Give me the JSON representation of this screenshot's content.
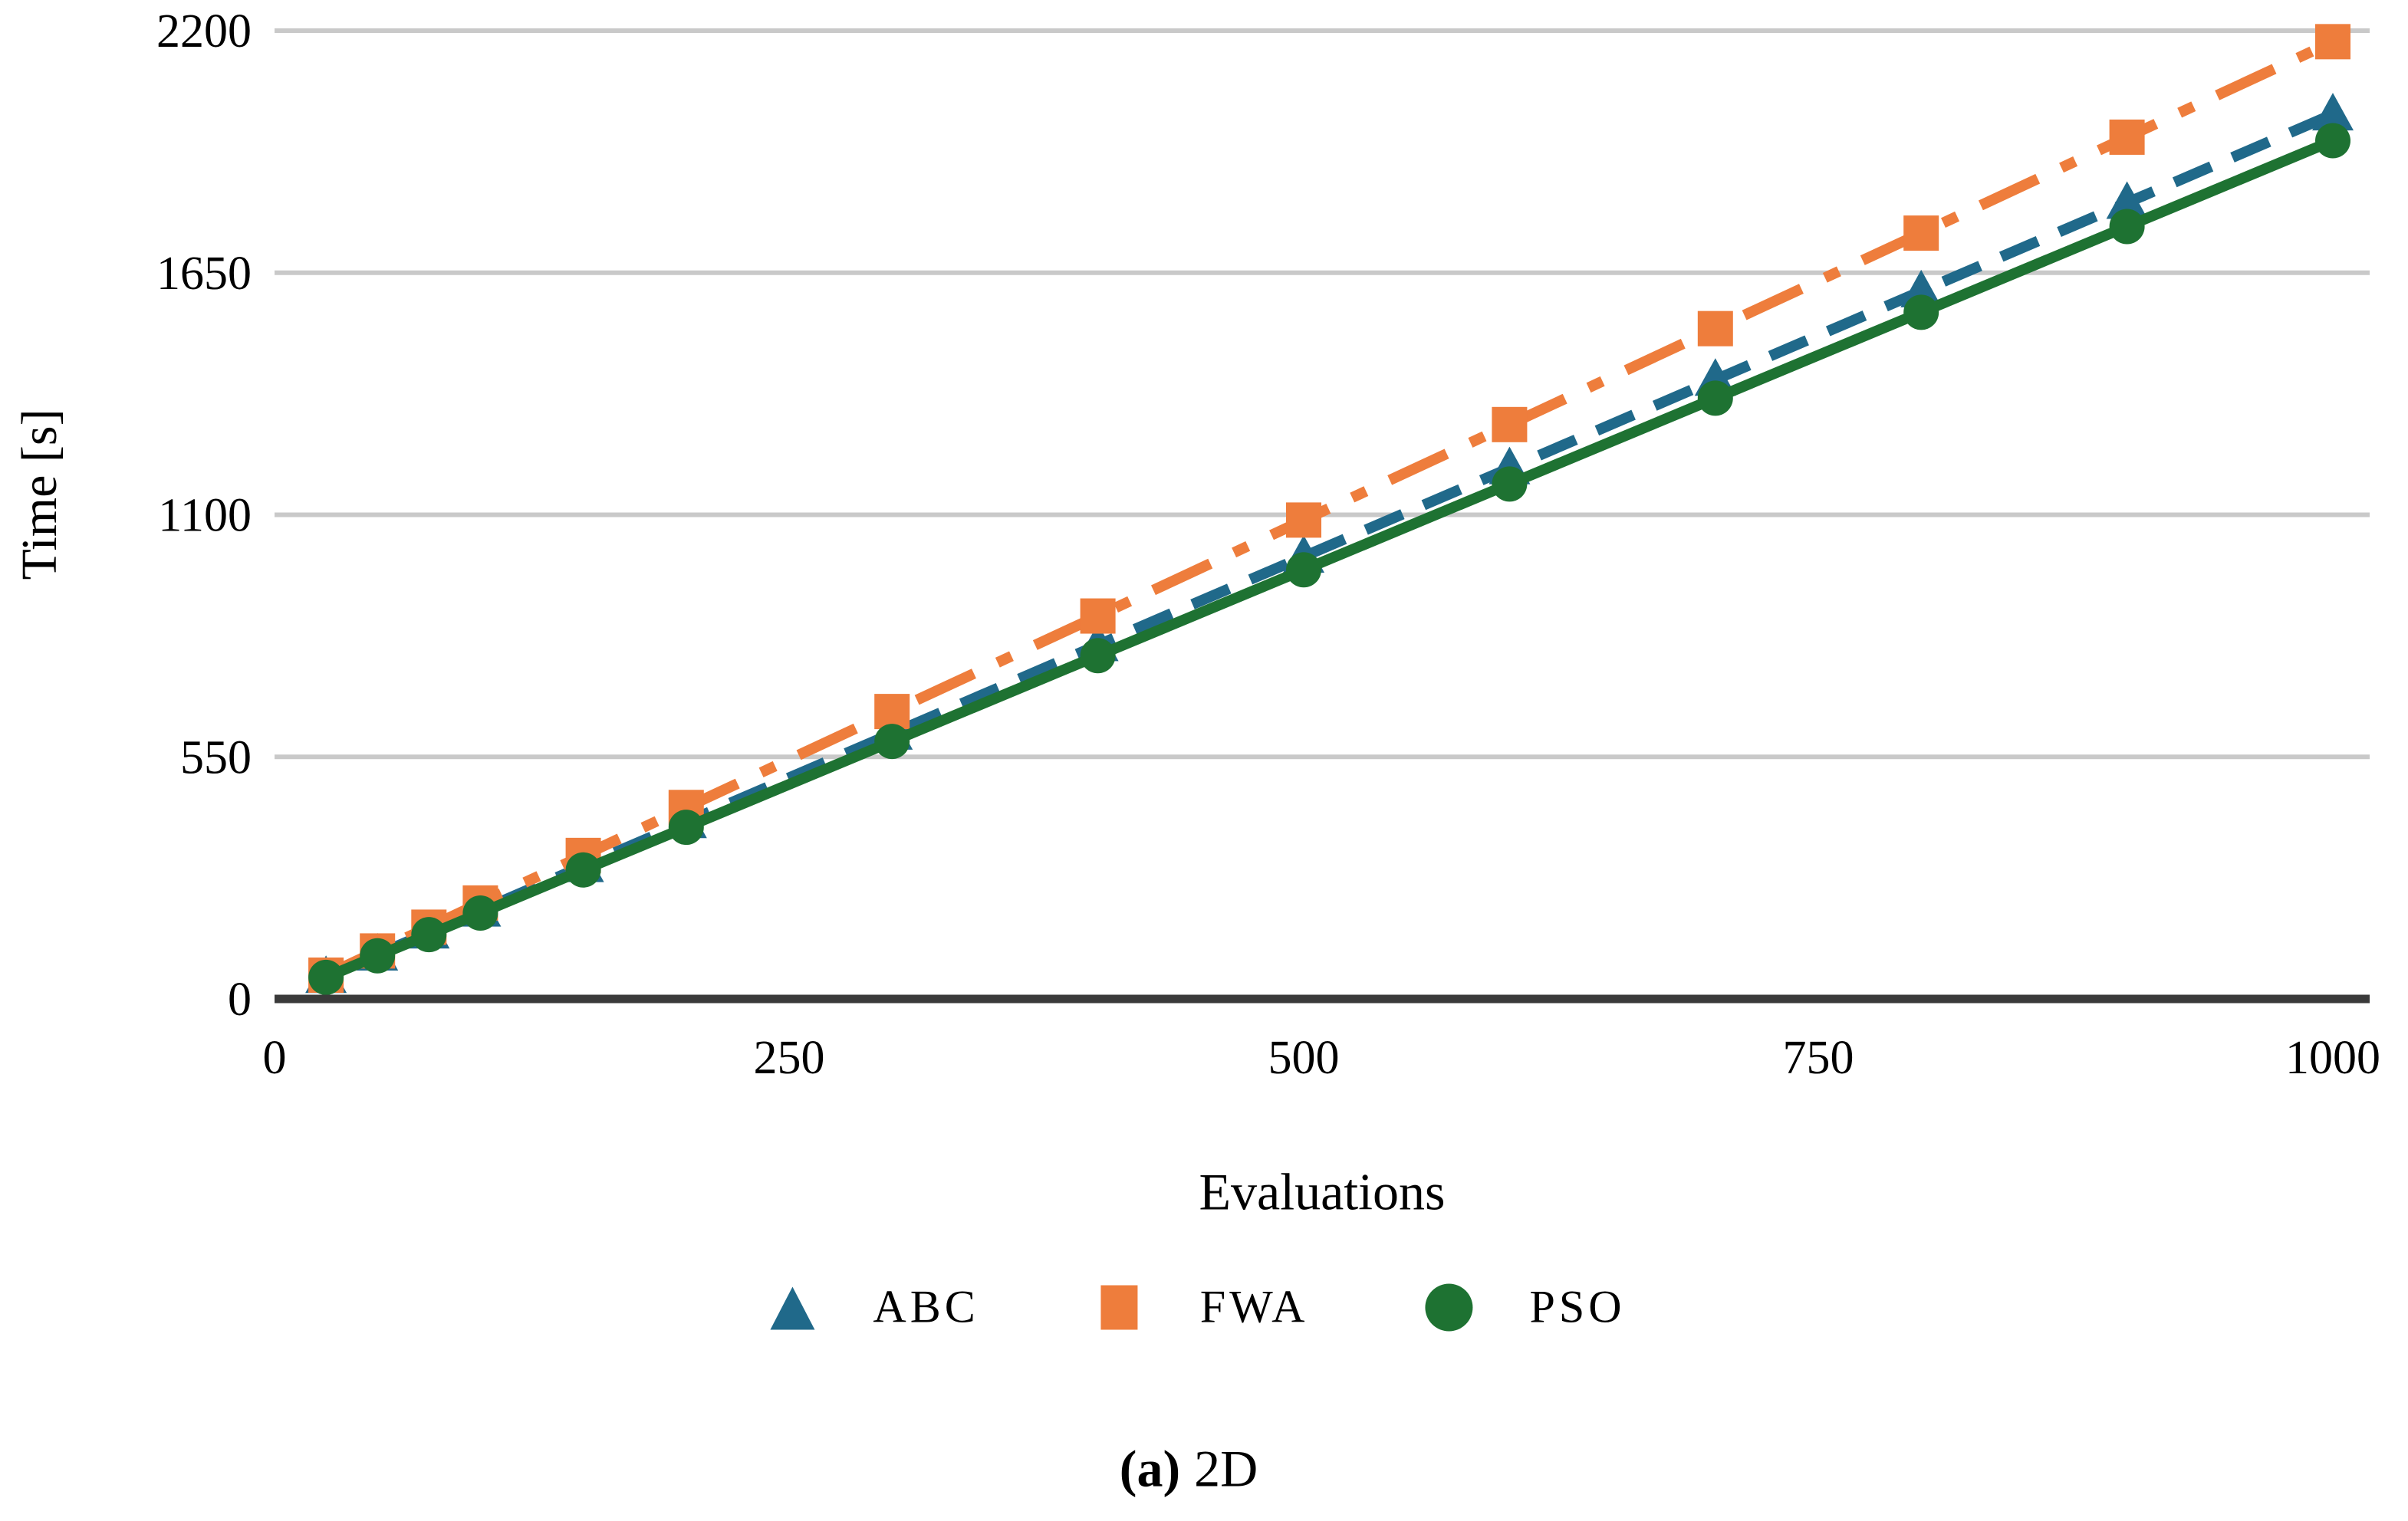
{
  "figure": {
    "caption_label": "(a)",
    "caption_text": "2D"
  },
  "chart_data": {
    "type": "line",
    "title": "",
    "xlabel": "Evaluations",
    "ylabel": "Time [s]",
    "x": [
      25,
      50,
      75,
      100,
      150,
      200,
      300,
      400,
      500,
      600,
      700,
      800,
      900,
      1000
    ],
    "series": [
      {
        "name": "ABC",
        "color": "#20698A",
        "marker": "triangle",
        "line_style": "dashed",
        "values": [
          50,
          101,
          151,
          201,
          302,
          402,
          603,
          804,
          1005,
          1206,
          1407,
          1608,
          1809,
          2010
        ]
      },
      {
        "name": "FWA",
        "color": "#EE7D3C",
        "marker": "square",
        "line_style": "dash-dot",
        "values": [
          54,
          109,
          163,
          218,
          326,
          435,
          653,
          870,
          1088,
          1305,
          1523,
          1740,
          1958,
          2175
        ]
      },
      {
        "name": "PSO",
        "color": "#1E7232",
        "marker": "circle",
        "line_style": "solid",
        "values": [
          49,
          98,
          146,
          195,
          293,
          390,
          585,
          780,
          975,
          1170,
          1365,
          1560,
          1755,
          1950
        ]
      }
    ],
    "legend_order": [
      "ABC",
      "FWA",
      "PSO"
    ],
    "xlim": [
      0,
      1000
    ],
    "ylim": [
      0,
      2200
    ],
    "x_ticks": [
      0,
      250,
      500,
      750,
      1000
    ],
    "y_ticks": [
      0,
      550,
      1100,
      1650,
      2200
    ],
    "grid": "horizontal",
    "grid_color": "#C9C9C9",
    "axis_line_color": "#3A3A3A",
    "legend_position": "bottom"
  }
}
